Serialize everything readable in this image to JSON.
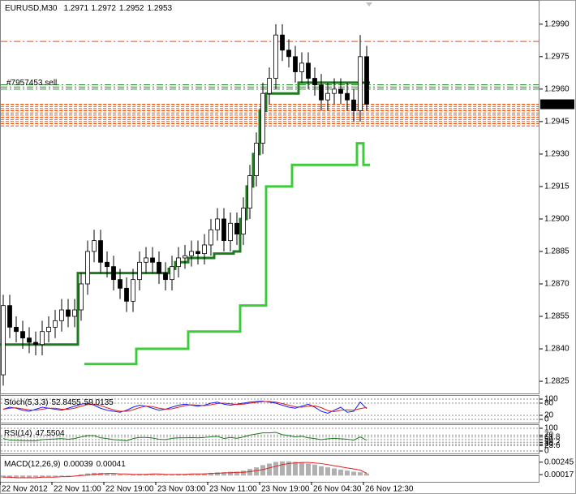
{
  "chart_data": [
    {
      "type": "candlestick",
      "title": "EURUSD,M30",
      "header_values": [
        1.2971,
        1.2972,
        1.2952,
        1.2953
      ],
      "categories": [
        "22 Nov 2012",
        null,
        null,
        null,
        null,
        null,
        null,
        null,
        "22 Nov 11:00",
        null,
        null,
        null,
        null,
        null,
        null,
        null,
        "22 Nov 19:00",
        null,
        null,
        null,
        null,
        null,
        null,
        null,
        "23 Nov 03:00",
        null,
        null,
        null,
        null,
        null,
        null,
        null,
        "23 Nov 11:00",
        null,
        null,
        null,
        null,
        null,
        null,
        null,
        "23 Nov 19:00",
        null,
        null,
        null,
        null,
        null,
        null,
        null,
        "26 Nov 04:30",
        null,
        null,
        null,
        null,
        null,
        null,
        null,
        "26 Nov 12:30"
      ],
      "open": [
        1.2828,
        1.286,
        1.285,
        1.2848,
        1.2845,
        1.2843,
        1.2842,
        1.2848,
        1.285,
        1.2853,
        1.2858,
        1.2855,
        1.2858,
        1.287,
        1.2885,
        1.289,
        1.288,
        1.2878,
        1.2872,
        1.2868,
        1.2862,
        1.2872,
        1.288,
        1.2882,
        1.288,
        1.2875,
        1.2872,
        1.2878,
        1.2882,
        1.2883,
        1.2885,
        1.2884,
        1.2888,
        1.2895,
        1.29,
        1.289,
        1.2898,
        1.2893,
        1.2905,
        1.292,
        1.2935,
        1.2958,
        1.2965,
        1.2985,
        1.2978,
        1.2975,
        1.2968,
        1.2972,
        1.2965,
        1.2962,
        1.2955,
        1.2958,
        1.296,
        1.2958,
        1.2955,
        1.295,
        1.2975
      ],
      "high": [
        1.2865,
        1.2865,
        1.2855,
        1.2853,
        1.285,
        1.2848,
        1.2853,
        1.2855,
        1.2858,
        1.2863,
        1.2863,
        1.2863,
        1.2875,
        1.289,
        1.2895,
        1.2895,
        1.2885,
        1.2883,
        1.2877,
        1.2873,
        1.2877,
        1.2885,
        1.2887,
        1.2887,
        1.2885,
        1.288,
        1.2883,
        1.2887,
        1.2888,
        1.289,
        1.289,
        1.2893,
        1.29,
        1.2905,
        1.2905,
        1.2903,
        1.2903,
        1.291,
        1.2925,
        1.294,
        1.2963,
        1.297,
        1.299,
        1.299,
        1.2983,
        1.298,
        1.2977,
        1.2977,
        1.297,
        1.2967,
        1.2963,
        1.2965,
        1.2965,
        1.2963,
        1.296,
        1.2985,
        1.298
      ],
      "low": [
        1.2823,
        1.2845,
        1.2843,
        1.284,
        1.2838,
        1.2837,
        1.2837,
        1.2843,
        1.2845,
        1.2848,
        1.285,
        1.285,
        1.2853,
        1.2865,
        1.288,
        1.2875,
        1.2873,
        1.2867,
        1.2863,
        1.2857,
        1.2857,
        1.2867,
        1.2875,
        1.2875,
        1.287,
        1.2867,
        1.2867,
        1.2873,
        1.2877,
        1.2878,
        1.2879,
        1.2879,
        1.2883,
        1.289,
        1.2885,
        1.2885,
        1.2888,
        1.2888,
        1.29,
        1.2915,
        1.293,
        1.2953,
        1.296,
        1.2973,
        1.297,
        1.2963,
        1.2963,
        1.296,
        1.2957,
        1.295,
        1.295,
        1.2953,
        1.2953,
        1.295,
        1.2945,
        1.2945,
        1.295
      ],
      "close": [
        1.286,
        1.285,
        1.2848,
        1.2845,
        1.2843,
        1.2842,
        1.2848,
        1.285,
        1.2853,
        1.2858,
        1.2855,
        1.2858,
        1.287,
        1.2885,
        1.289,
        1.288,
        1.2878,
        1.2872,
        1.2868,
        1.2862,
        1.2872,
        1.288,
        1.2882,
        1.288,
        1.2875,
        1.2872,
        1.2878,
        1.2882,
        1.2883,
        1.2885,
        1.2884,
        1.2888,
        1.2895,
        1.29,
        1.289,
        1.2898,
        1.2893,
        1.2905,
        1.292,
        1.2935,
        1.2958,
        1.2965,
        1.2985,
        1.2978,
        1.2975,
        1.2968,
        1.2972,
        1.2965,
        1.2962,
        1.2955,
        1.2958,
        1.296,
        1.2958,
        1.2955,
        1.295,
        1.2975,
        1.2953
      ],
      "series": [
        {
          "color": "#1e7b1e",
          "values": [
            1.2842,
            1.2842,
            1.2842,
            1.2842,
            1.2842,
            1.2842,
            1.2842,
            1.2842,
            1.2842,
            1.2842,
            1.2842,
            1.2842,
            1.2875,
            1.2875,
            1.2875,
            1.2875,
            1.2875,
            1.2875,
            1.2875,
            1.2875,
            1.2875,
            1.2875,
            1.2875,
            1.2875,
            1.2875,
            1.2875,
            1.2877,
            1.288,
            1.288,
            1.2882,
            1.2882,
            1.2882,
            1.2882,
            1.2884,
            1.2884,
            1.2884,
            1.2885,
            1.29,
            1.2915,
            1.293,
            1.295,
            1.2958,
            1.2958,
            1.2958,
            1.2958,
            1.2958,
            1.2963,
            1.2963,
            1.2963,
            1.2963,
            1.2963,
            1.2963,
            1.2963,
            1.2963,
            1.2963,
            1.2963,
            1.2963
          ]
        },
        {
          "color": "#3ccc3c",
          "values": [
            null,
            null,
            null,
            null,
            null,
            null,
            null,
            null,
            null,
            null,
            null,
            null,
            null,
            1.2833,
            1.2833,
            1.2833,
            1.2833,
            1.2833,
            1.2833,
            1.2833,
            1.2833,
            1.284,
            1.284,
            1.284,
            1.284,
            1.284,
            1.284,
            1.284,
            1.284,
            1.2848,
            1.2848,
            1.2848,
            1.2848,
            1.2848,
            1.2848,
            1.2848,
            1.2848,
            1.286,
            1.286,
            1.286,
            1.286,
            1.2915,
            1.2915,
            1.2915,
            1.2915,
            1.2925,
            1.2925,
            1.2925,
            1.2925,
            1.2925,
            1.2925,
            1.2925,
            1.2925,
            1.2925,
            1.2925,
            1.2935,
            1.2925
          ]
        }
      ],
      "order_level": {
        "color": "#ff4500",
        "value": 1.2982
      },
      "order_label": "#7957453 sell",
      "green_levels": {
        "color": "#228b22",
        "values": [
          1.2962,
          1.2961,
          1.296
        ]
      },
      "stop_levels": {
        "color": "#ff4500",
        "values": [
          1.2953,
          1.2952,
          1.2951,
          1.295,
          1.2949,
          1.2948,
          1.2947,
          1.2946,
          1.2945,
          1.2944,
          1.2943
        ]
      },
      "last_price": 1.2953,
      "ylim": [
        1.28194,
        1.30008
      ],
      "yticks": [
        {
          "value": 1.299,
          "label": "1.2990"
        },
        1.2975,
        {
          "value": 1.296,
          "label": "1.2960"
        },
        1.2945,
        {
          "value": 1.293,
          "label": "1.2930"
        },
        1.2915,
        {
          "value": 1.29,
          "label": "1.2900"
        },
        1.2885,
        {
          "value": 1.287,
          "label": "1.2870"
        },
        1.2855,
        {
          "value": 1.284,
          "label": "1.2840"
        },
        1.2825
      ]
    },
    {
      "type": "line",
      "title": "Stoch(5,3,3)",
      "label_values": [
        52.8455,
        59.0135
      ],
      "series": [
        {
          "color": "#1a1aff",
          "values": [
            50,
            60,
            55,
            45,
            40,
            50,
            60,
            55,
            50,
            45,
            55,
            65,
            75,
            80,
            70,
            55,
            45,
            40,
            35,
            45,
            60,
            70,
            65,
            55,
            45,
            50,
            60,
            70,
            75,
            70,
            65,
            70,
            80,
            85,
            75,
            70,
            75,
            80,
            85,
            88,
            90,
            85,
            80,
            70,
            60,
            55,
            65,
            75,
            60,
            40,
            30,
            45,
            60,
            35,
            40,
            85,
            52.8455
          ]
        },
        {
          "color": "#e02020",
          "values": [
            50,
            55,
            57,
            52,
            47,
            45,
            50,
            55,
            55,
            50,
            50,
            55,
            65,
            73,
            75,
            68,
            57,
            47,
            40,
            40,
            47,
            58,
            65,
            63,
            55,
            50,
            52,
            60,
            68,
            72,
            70,
            68,
            72,
            78,
            80,
            77,
            73,
            75,
            80,
            84,
            88,
            88,
            85,
            78,
            70,
            62,
            60,
            65,
            67,
            58,
            43,
            38,
            45,
            47,
            45,
            53,
            59.0135
          ]
        }
      ],
      "ylim": [
        0,
        100
      ],
      "yticks": [
        100,
        80,
        20,
        0
      ]
    },
    {
      "type": "line",
      "title": "RSI(14)",
      "label_values": [
        47.5504
      ],
      "series": [
        {
          "color": "#1e7b1e",
          "values": [
            55,
            48,
            47,
            46,
            45,
            45,
            50,
            52,
            53,
            55,
            52,
            55,
            62,
            68,
            68,
            58,
            55,
            50,
            48,
            45,
            55,
            60,
            60,
            57,
            52,
            50,
            56,
            58,
            58,
            59,
            58,
            60,
            63,
            65,
            55,
            60,
            56,
            62,
            70,
            75,
            80,
            80,
            82,
            72,
            68,
            62,
            65,
            58,
            55,
            50,
            54,
            56,
            54,
            52,
            48,
            62,
            47.5504
          ]
        }
      ],
      "ylim": [
        0,
        100
      ],
      "yticks": [
        100,
        70,
        61.8,
        50,
        38.2,
        30,
        23.6,
        0
      ]
    },
    {
      "type": "macd",
      "title": "MACD(12,26,9)",
      "label_values": [
        0.00039,
        0.00041
      ],
      "histogram": {
        "color": "#b0b0b0",
        "values": [
          -0.0004,
          -0.0004,
          -0.0004,
          -0.0004,
          -0.0004,
          -0.0003,
          -0.0003,
          -0.0002,
          -0.0002,
          -0.0001,
          -0.0001,
          0,
          0.0002,
          0.0004,
          0.0005,
          0.0005,
          0.0004,
          0.0003,
          0.0002,
          0.0001,
          0.0002,
          0.0003,
          0.0003,
          0.0003,
          0.0002,
          0.0002,
          0.0002,
          0.0003,
          0.0003,
          0.0003,
          0.0003,
          0.0004,
          0.0005,
          0.0006,
          0.0006,
          0.0007,
          0.0007,
          0.0009,
          0.0012,
          0.0015,
          0.0019,
          0.0022,
          0.0025,
          0.0026,
          0.0026,
          0.0025,
          0.0024,
          0.0022,
          0.002,
          0.0017,
          0.0015,
          0.0013,
          0.0011,
          0.0009,
          0.0007,
          0.0006,
          0.00039
        ]
      },
      "signal": {
        "color": "#e02020",
        "values": [
          -0.0003,
          -0.0003,
          -0.0004,
          -0.0004,
          -0.0004,
          -0.0004,
          -0.0003,
          -0.0003,
          -0.0003,
          -0.0002,
          -0.0002,
          -0.0001,
          0,
          0.0001,
          0.0002,
          0.0003,
          0.0004,
          0.0004,
          0.0003,
          0.0003,
          0.0002,
          0.0002,
          0.0002,
          0.0003,
          0.0003,
          0.0002,
          0.0002,
          0.0002,
          0.0002,
          0.0003,
          0.0003,
          0.0003,
          0.0004,
          0.0004,
          0.0005,
          0.0005,
          0.0006,
          0.0006,
          0.0007,
          0.0009,
          0.0011,
          0.0014,
          0.0017,
          0.002,
          0.0022,
          0.0023,
          0.0024,
          0.0024,
          0.0023,
          0.0022,
          0.002,
          0.0018,
          0.0016,
          0.0014,
          0.0012,
          0.001,
          0.00041
        ]
      },
      "ylim": [
        -0.001,
        0.0036
      ],
      "yticks": [
        0.00245,
        0.00017
      ]
    }
  ]
}
